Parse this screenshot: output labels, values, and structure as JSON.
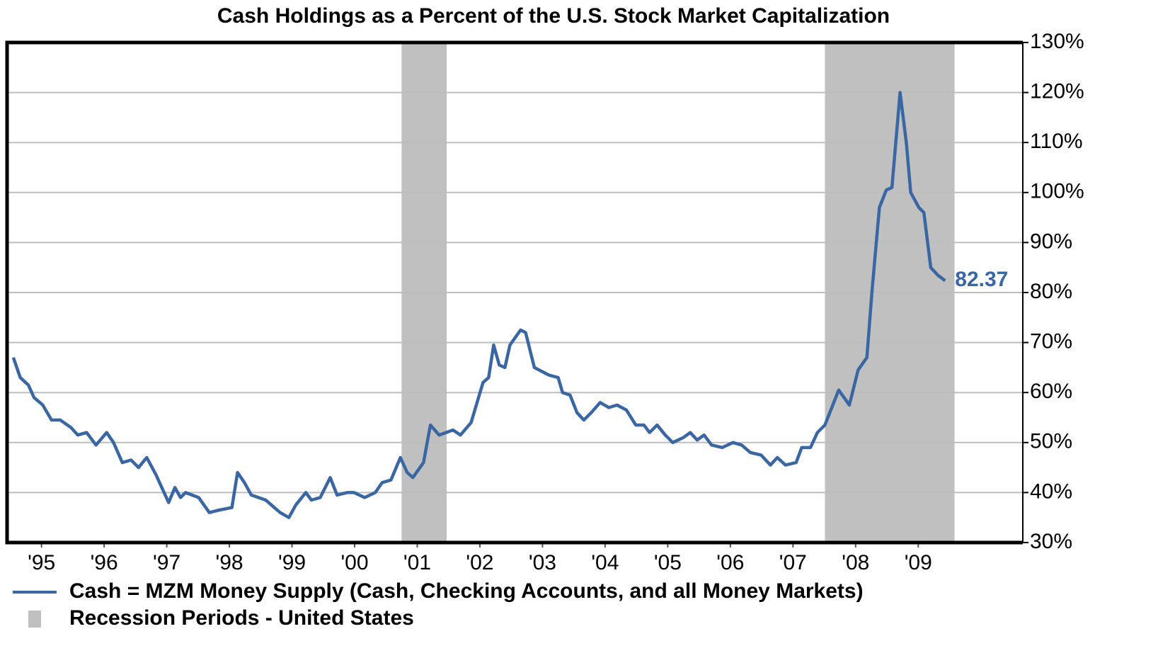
{
  "chart_data": {
    "type": "line",
    "title": "Cash Holdings as a Percent of the U.S. Stock Market Capitalization",
    "x": [
      1995.05,
      1995.16,
      1995.29,
      1995.38,
      1995.52,
      1995.66,
      1995.8,
      1995.97,
      1996.08,
      1996.22,
      1996.37,
      1996.54,
      1996.65,
      1996.79,
      1996.93,
      1997.05,
      1997.18,
      1997.33,
      1997.53,
      1997.63,
      1997.72,
      1997.8,
      1998.01,
      1998.18,
      1998.34,
      1998.54,
      1998.63,
      1998.74,
      1998.85,
      1999.08,
      1999.31,
      1999.45,
      1999.56,
      1999.72,
      1999.81,
      1999.95,
      2000.11,
      2000.22,
      2000.38,
      2000.49,
      2000.66,
      2000.83,
      2000.94,
      2001.08,
      2001.23,
      2001.34,
      2001.43,
      2001.6,
      2001.71,
      2001.85,
      2002.07,
      2002.19,
      2002.36,
      2002.55,
      2002.64,
      2002.72,
      2002.81,
      2002.9,
      2002.98,
      2003.15,
      2003.23,
      2003.37,
      2003.6,
      2003.75,
      2003.82,
      2003.94,
      2004.05,
      2004.16,
      2004.28,
      2004.42,
      2004.56,
      2004.69,
      2004.84,
      2004.99,
      2005.12,
      2005.21,
      2005.33,
      2005.46,
      2005.58,
      2005.75,
      2005.86,
      2005.97,
      2006.08,
      2006.2,
      2006.37,
      2006.54,
      2006.68,
      2006.82,
      2006.99,
      2007.14,
      2007.25,
      2007.38,
      2007.55,
      2007.64,
      2007.78,
      2007.89,
      2008.01,
      2008.12,
      2008.23,
      2008.4,
      2008.54,
      2008.68,
      2008.76,
      2008.88,
      2008.99,
      2009.08,
      2009.21,
      2009.31,
      2009.38,
      2009.51,
      2009.59,
      2009.7,
      2009.81,
      2009.93
    ],
    "series": [
      {
        "name": "Cash = MZM Money Supply (Cash, Checking Accounts, and all Money Markets)",
        "color": "#3a67a3",
        "values": [
          67,
          63,
          61.5,
          59,
          57.5,
          54.5,
          54.5,
          53,
          51.5,
          52,
          49.5,
          52,
          50,
          46,
          46.5,
          45,
          47,
          43.5,
          38,
          41,
          39,
          40,
          39,
          36,
          36.5,
          37,
          44,
          42,
          39.5,
          38.5,
          36,
          35,
          37.5,
          40,
          38.5,
          39,
          43,
          39.5,
          40,
          40,
          39,
          40,
          42,
          42.5,
          47,
          44,
          43,
          46,
          53.5,
          51.5,
          52.5,
          51.5,
          54,
          62,
          63,
          69.5,
          65.5,
          65,
          69.5,
          72.5,
          72,
          65,
          63.5,
          63,
          60,
          59.5,
          56,
          54.5,
          56,
          58,
          57,
          57.5,
          56.5,
          53.5,
          53.5,
          52,
          53.5,
          51.5,
          50,
          51,
          52,
          50.5,
          51.5,
          49.5,
          49,
          50,
          49.5,
          48,
          47.5,
          45.5,
          47,
          45.5,
          46,
          49,
          49,
          52,
          53.5,
          57,
          60.5,
          57.5,
          64.5,
          67,
          80,
          97,
          100.5,
          101,
          120,
          110,
          100,
          97,
          96,
          85,
          83.5,
          82.37
        ]
      }
    ],
    "last_value_label": true,
    "recessions": {
      "name": "Recession Periods - United States",
      "color": "#c0c0c0",
      "periods": [
        [
          2001.25,
          2001.97
        ],
        [
          2008.01,
          2010.08
        ]
      ]
    },
    "xlim": [
      1994.95,
      2011.17
    ],
    "xticks": [
      {
        "value": 1995.5,
        "label": "'95"
      },
      {
        "value": 1996.5,
        "label": "'96"
      },
      {
        "value": 1997.5,
        "label": "'97"
      },
      {
        "value": 1998.5,
        "label": "'98"
      },
      {
        "value": 1999.5,
        "label": "'99"
      },
      {
        "value": 2000.5,
        "label": "'00"
      },
      {
        "value": 2001.5,
        "label": "'01"
      },
      {
        "value": 2002.5,
        "label": "'02"
      },
      {
        "value": 2003.5,
        "label": "'03"
      },
      {
        "value": 2004.5,
        "label": "'04"
      },
      {
        "value": 2005.5,
        "label": "'05"
      },
      {
        "value": 2006.5,
        "label": "'06"
      },
      {
        "value": 2007.5,
        "label": "'07"
      },
      {
        "value": 2008.5,
        "label": "'08"
      },
      {
        "value": 2009.5,
        "label": "'09"
      }
    ],
    "ylim": [
      30,
      130
    ],
    "yticks": [
      {
        "value": 30,
        "label": "30%"
      },
      {
        "value": 40,
        "label": "40%"
      },
      {
        "value": 50,
        "label": "50%"
      },
      {
        "value": 60,
        "label": "60%"
      },
      {
        "value": 70,
        "label": "70%"
      },
      {
        "value": 80,
        "label": "80%"
      },
      {
        "value": 90,
        "label": "90%"
      },
      {
        "value": 100,
        "label": "100%"
      },
      {
        "value": 110,
        "label": "110%"
      },
      {
        "value": 120,
        "label": "120%"
      },
      {
        "value": 130,
        "label": "130%"
      }
    ],
    "y_axis_side": "right",
    "grid": true
  }
}
